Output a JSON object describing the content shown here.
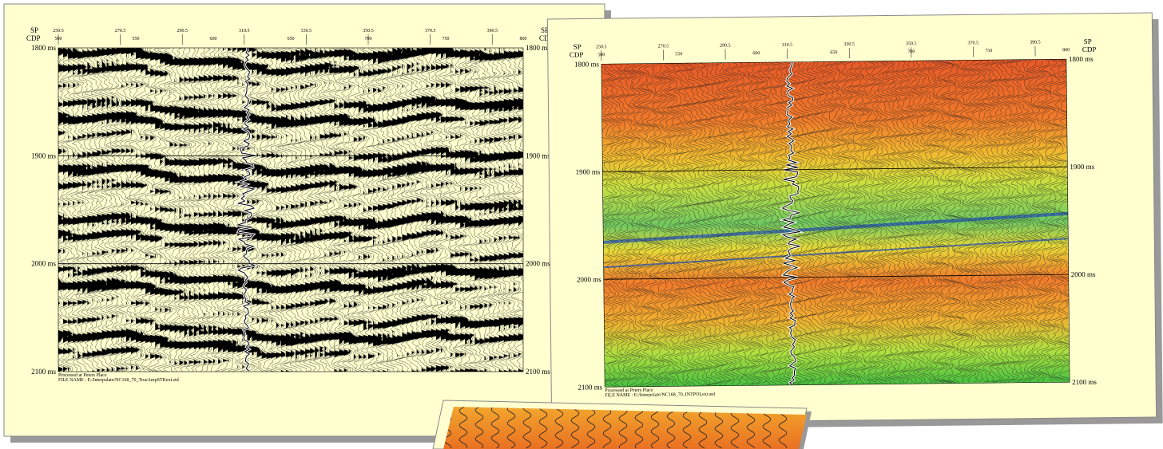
{
  "panels": [
    {
      "sp_label": "SP",
      "cdp_label": "CDP",
      "sp_ticks": [
        "250.5",
        "270.5",
        "290.5",
        "310.5",
        "330.5",
        "350.5",
        "370.5",
        "390.5"
      ],
      "cdp_ticks": [
        "500",
        "550",
        "600",
        "650",
        "700",
        "750",
        "800"
      ],
      "time_ticks": [
        "1800 ms",
        "1900 ms",
        "2000 ms",
        "2100 ms"
      ],
      "footer": [
        "Processed at Peters Place",
        "FILE NAME : E:/Interpolate/NC168_70_TrueAmpSTKext.std"
      ]
    },
    {
      "sp_label": "SP",
      "cdp_label": "CDP",
      "sp_ticks": [
        "250.5",
        "270.5",
        "290.5",
        "310.5",
        "330.5",
        "350.5",
        "370.5",
        "390.5"
      ],
      "cdp_ticks": [
        "500",
        "550",
        "600",
        "650",
        "700",
        "750",
        "800"
      ],
      "time_ticks": [
        "1800 ms",
        "1900 ms",
        "2000 ms",
        "2100 ms"
      ],
      "footer": [
        "Processed at Peters Place",
        "FILE NAME : E:/Interpolate/NC168_70_INTPOLext.std"
      ]
    }
  ]
}
